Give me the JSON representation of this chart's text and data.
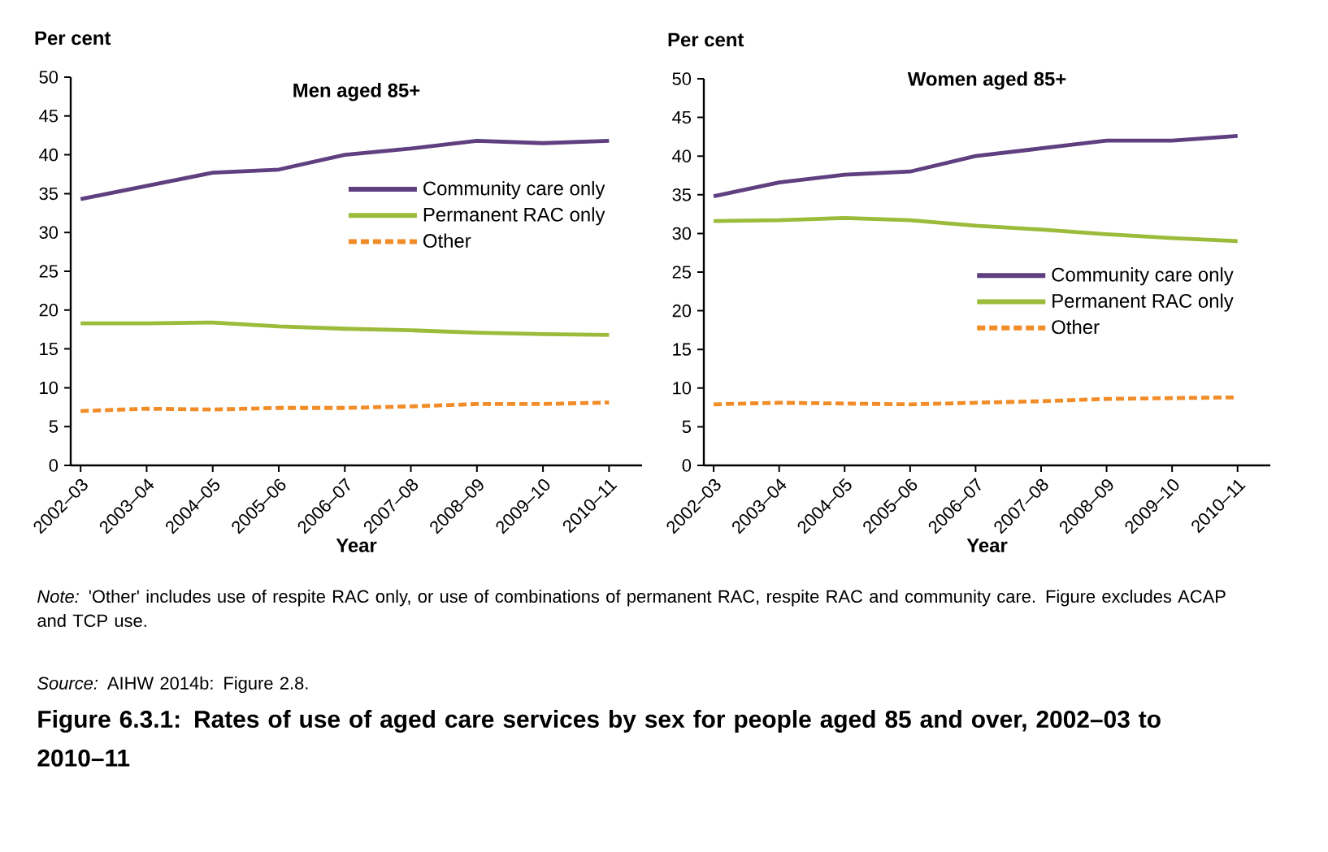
{
  "chart_data": [
    {
      "type": "line",
      "title": "Men aged 85+",
      "xlabel": "Year",
      "ylabel": "Per cent",
      "categories": [
        "2002–03",
        "2003–04",
        "2004–05",
        "2005–06",
        "2006–07",
        "2007–08",
        "2008–09",
        "2009–10",
        "2010–11"
      ],
      "ylim": [
        0,
        50
      ],
      "yticks": [
        0,
        5,
        10,
        15,
        20,
        25,
        30,
        35,
        40,
        45,
        50
      ],
      "grid": false,
      "legend": "top right",
      "marker": "none",
      "series": [
        {
          "name": "Community care only",
          "color": "#5f3f80",
          "line_style": "solid",
          "values": [
            34.3,
            36,
            37.7,
            38.1,
            40,
            40.8,
            41.8,
            41.5,
            41.8
          ]
        },
        {
          "name": "Permanent RAC only",
          "color": "#9bbb3b",
          "line_style": "solid",
          "values": [
            18.3,
            18.3,
            18.4,
            17.9,
            17.6,
            17.4,
            17.1,
            16.9,
            16.8
          ]
        },
        {
          "name": "Other",
          "color": "#f28c28",
          "line_style": "dashed",
          "values": [
            7,
            7.3,
            7.2,
            7.4,
            7.4,
            7.6,
            7.9,
            7.9,
            8.1
          ]
        }
      ],
      "annotations": [
        "*Note:* 'Other' includes use of respite RAC only, or use of combinations of permanent RAC, respite RAC and community care. Figure excludes ACAP and TCP use.",
        "*Source:* AIHW 2014b: Figure 2.8.",
        "Figure 6.3.1: Rates of use of aged care services by sex for people aged 85 and over, 2002–03 to 2010–11"
      ]
    },
    {
      "type": "line",
      "title": "Women aged 85+",
      "xlabel": "Year",
      "ylabel": "Per cent",
      "categories": [
        "2002–03",
        "2003–04",
        "2004–05",
        "2005–06",
        "2006–07",
        "2007–08",
        "2008–09",
        "2009–10",
        "2010–11"
      ],
      "ylim": [
        0,
        50
      ],
      "yticks": [
        0,
        5,
        10,
        15,
        20,
        25,
        30,
        35,
        40,
        45,
        50
      ],
      "grid": false,
      "legend": "right",
      "marker": "none",
      "series": [
        {
          "name": "Community care only",
          "color": "#5f3f80",
          "line_style": "solid",
          "values": [
            34.8,
            36.6,
            37.6,
            38,
            40,
            41,
            42,
            42,
            42.6
          ]
        },
        {
          "name": "Permanent RAC only",
          "color": "#9bbb3b",
          "line_style": "solid",
          "values": [
            31.6,
            31.7,
            32,
            31.7,
            31,
            30.5,
            29.9,
            29.4,
            29
          ]
        },
        {
          "name": "Other",
          "color": "#f28c28",
          "line_style": "dashed",
          "values": [
            7.9,
            8.1,
            8,
            7.9,
            8.1,
            8.3,
            8.6,
            8.7,
            8.8
          ]
        }
      ]
    }
  ]
}
